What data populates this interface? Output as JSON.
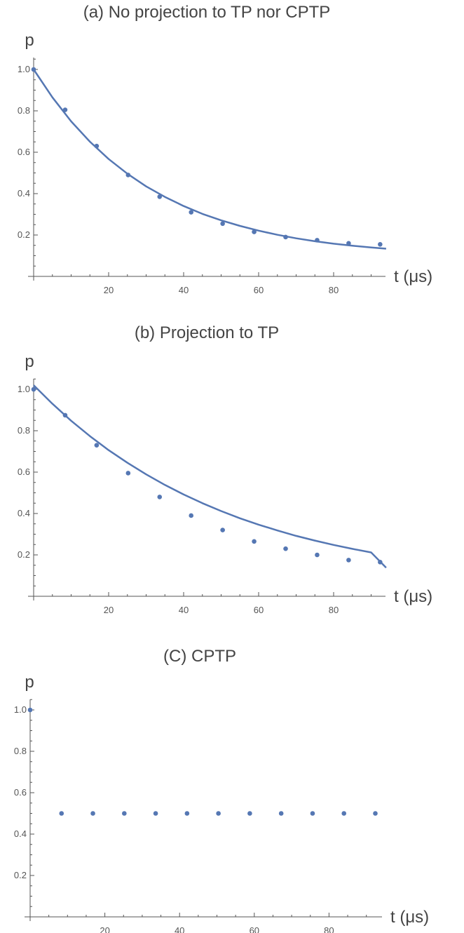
{
  "colors": {
    "series": "#5577b3",
    "axis": "#555555",
    "text": "#444444"
  },
  "chart_data": [
    {
      "type": "scatter",
      "title": "(a) No projection to TP nor CPTP",
      "xlabel": "t (μs)",
      "ylabel": "p",
      "xlim": [
        0,
        95
      ],
      "ylim": [
        0,
        1.05
      ],
      "x_ticks": [
        20,
        40,
        60,
        80
      ],
      "y_ticks": [
        0.2,
        0.4,
        0.6,
        0.8,
        1.0
      ],
      "y_tick_labels": [
        "0.2",
        "0.4",
        "0.6",
        "0.8",
        "1.0"
      ],
      "grid": false,
      "points": {
        "x": [
          0,
          8.4,
          16.8,
          25.2,
          33.6,
          42,
          50.4,
          58.8,
          67.2,
          75.6,
          84,
          92.4
        ],
        "y": [
          1.0,
          0.805,
          0.63,
          0.49,
          0.385,
          0.31,
          0.255,
          0.215,
          0.19,
          0.175,
          0.16,
          0.155
        ]
      },
      "fit_curve": {
        "x": [
          0,
          5,
          10,
          15,
          20,
          25,
          30,
          35,
          40,
          45,
          50,
          55,
          60,
          65,
          70,
          75,
          80,
          85,
          90,
          94
        ],
        "y": [
          1.0,
          0.865,
          0.749,
          0.651,
          0.567,
          0.496,
          0.435,
          0.384,
          0.34,
          0.302,
          0.271,
          0.244,
          0.221,
          0.201,
          0.184,
          0.17,
          0.158,
          0.148,
          0.14,
          0.134
        ]
      }
    },
    {
      "type": "scatter",
      "title": "(b) Projection to TP",
      "xlabel": "t (μs)",
      "ylabel": "p",
      "xlim": [
        0,
        95
      ],
      "ylim": [
        0,
        1.05
      ],
      "x_ticks": [
        20,
        40,
        60,
        80
      ],
      "y_ticks": [
        0.2,
        0.4,
        0.6,
        0.8,
        1.0
      ],
      "y_tick_labels": [
        "0.2",
        "0.4",
        "0.6",
        "0.8",
        "1.0"
      ],
      "grid": false,
      "points": {
        "x": [
          0,
          8.4,
          16.8,
          25.2,
          33.6,
          42,
          50.4,
          58.8,
          67.2,
          75.6,
          84,
          92.4
        ],
        "y": [
          1.0,
          0.875,
          0.73,
          0.595,
          0.48,
          0.39,
          0.32,
          0.265,
          0.23,
          0.2,
          0.175,
          0.165
        ]
      },
      "fit_curve": {
        "x": [
          0,
          5,
          10,
          15,
          20,
          25,
          30,
          35,
          40,
          45,
          50,
          55,
          60,
          65,
          70,
          75,
          80,
          85,
          90,
          94
        ],
        "y": [
          1.02,
          0.93,
          0.848,
          0.774,
          0.706,
          0.645,
          0.589,
          0.538,
          0.492,
          0.45,
          0.412,
          0.377,
          0.346,
          0.318,
          0.292,
          0.269,
          0.248,
          0.229,
          0.212,
          0.138
        ]
      }
    },
    {
      "type": "scatter",
      "title": "(C) CPTP",
      "xlabel": "t (μs)",
      "ylabel": "p",
      "xlim": [
        0,
        95
      ],
      "ylim": [
        0,
        1.05
      ],
      "x_ticks": [
        20,
        40,
        60,
        80
      ],
      "y_ticks": [
        0.2,
        0.4,
        0.6,
        0.8,
        1.0
      ],
      "y_tick_labels": [
        "0.2",
        "0.4",
        "0.6",
        "0.8",
        "1.0"
      ],
      "grid": false,
      "points": {
        "x": [
          0,
          8.4,
          16.8,
          25.2,
          33.6,
          42,
          50.4,
          58.8,
          67.2,
          75.6,
          84,
          92.4
        ],
        "y": [
          1.0,
          0.5,
          0.5,
          0.5,
          0.5,
          0.5,
          0.5,
          0.5,
          0.5,
          0.5,
          0.5,
          0.5
        ]
      }
    }
  ]
}
